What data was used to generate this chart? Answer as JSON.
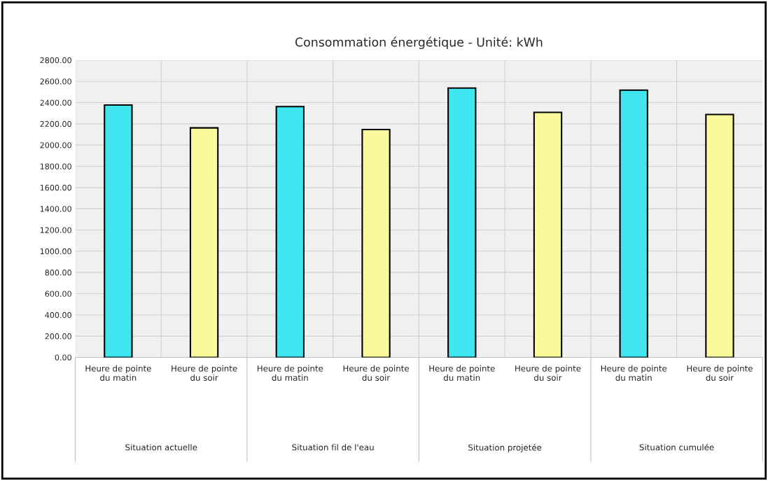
{
  "chart_data": {
    "type": "bar",
    "title": "Consommation énergétique - Unité: kWh",
    "categories": [
      "Heure de pointe\ndu matin",
      "Heure de pointe\ndu soir",
      "Heure de pointe\ndu matin",
      "Heure de pointe\ndu soir",
      "Heure de pointe\ndu matin",
      "Heure de pointe\ndu soir",
      "Heure de pointe\ndu matin",
      "Heure de pointe\ndu soir"
    ],
    "values": [
      2377,
      2162,
      2362,
      2146,
      2537,
      2308,
      2517,
      2288
    ],
    "colors": [
      "#3fe6f0",
      "#fafa9c",
      "#3fe6f0",
      "#fafa9c",
      "#3fe6f0",
      "#fafa9c",
      "#3fe6f0",
      "#fafa9c"
    ],
    "annotations": [
      "Situation actuelle",
      "Situation fil de l'eau",
      "Situation projetée",
      "Situation cumulée"
    ],
    "ylim": [
      0,
      2800
    ],
    "yticks": [
      {
        "value": 0,
        "label": "0.00"
      },
      {
        "value": 200,
        "label": "200.00"
      },
      {
        "value": 400,
        "label": "400.00"
      },
      {
        "value": 600,
        "label": "600.00"
      },
      {
        "value": 800,
        "label": "800.00"
      },
      {
        "value": 1000,
        "label": "1000.00"
      },
      {
        "value": 1200,
        "label": "1200.00"
      },
      {
        "value": 1400,
        "label": "1400.00"
      },
      {
        "value": 1600,
        "label": "1600.00"
      },
      {
        "value": 1800,
        "label": "1800.00"
      },
      {
        "value": 2000,
        "label": "2000.00"
      },
      {
        "value": 2200,
        "label": "2200.00"
      },
      {
        "value": 2400,
        "label": "2400.00"
      },
      {
        "value": 2600,
        "label": "2600.00"
      },
      {
        "value": 2800,
        "label": "2800.00"
      }
    ],
    "grid": true
  }
}
